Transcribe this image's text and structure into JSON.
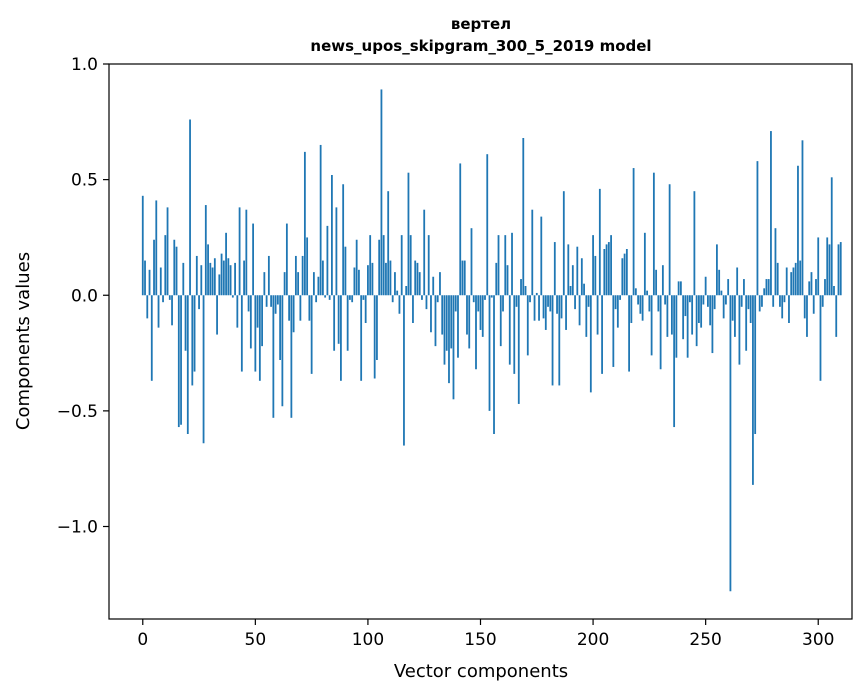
{
  "chart_data": {
    "type": "bar",
    "title_line1": "вертел",
    "title_line2": "news_upos_skipgram_300_5_2019 model",
    "xlabel": "Vector components",
    "ylabel": "Components values",
    "xlim": [
      -15,
      315
    ],
    "ylim": [
      -1.4,
      1.0
    ],
    "xticks": [
      0,
      50,
      100,
      150,
      200,
      250,
      300
    ],
    "xtick_labels": [
      "0",
      "50",
      "100",
      "150",
      "200",
      "250",
      "300"
    ],
    "yticks": [
      1.0,
      0.5,
      0.0,
      -0.5,
      -1.0
    ],
    "ytick_labels": [
      "1.0",
      "0.5",
      "0.0",
      "−0.5",
      "−1.0"
    ],
    "bar_color": "#1f77b4",
    "grid": false,
    "values": [
      0.43,
      0.15,
      -0.1,
      0.11,
      -0.37,
      0.24,
      0.41,
      -0.14,
      0.12,
      -0.03,
      0.26,
      0.38,
      -0.02,
      -0.13,
      0.24,
      0.21,
      -0.57,
      -0.56,
      0.14,
      -0.24,
      -0.6,
      0.76,
      -0.39,
      -0.33,
      0.17,
      -0.06,
      0.13,
      -0.64,
      0.39,
      0.22,
      0.14,
      0.12,
      0.16,
      -0.17,
      0.09,
      0.18,
      0.15,
      0.27,
      0.16,
      0.13,
      -0.01,
      0.14,
      -0.14,
      0.38,
      -0.33,
      0.15,
      0.37,
      -0.07,
      -0.23,
      0.31,
      -0.33,
      -0.14,
      -0.37,
      -0.22,
      0.1,
      -0.05,
      0.17,
      -0.05,
      -0.53,
      -0.08,
      -0.04,
      -0.28,
      -0.48,
      0.1,
      0.31,
      -0.11,
      -0.53,
      -0.16,
      0.17,
      0.1,
      -0.11,
      0.17,
      0.62,
      0.25,
      -0.11,
      -0.34,
      0.1,
      -0.03,
      0.08,
      0.65,
      0.15,
      -0.01,
      0.3,
      -0.02,
      0.52,
      -0.24,
      0.38,
      -0.21,
      -0.37,
      0.48,
      0.21,
      -0.24,
      -0.02,
      -0.03,
      0.12,
      0.24,
      0.11,
      -0.37,
      -0.02,
      -0.12,
      0.13,
      0.26,
      0.14,
      -0.36,
      -0.28,
      0.24,
      0.89,
      0.26,
      0.14,
      0.45,
      0.15,
      -0.03,
      0.1,
      0.02,
      -0.08,
      0.26,
      -0.65,
      0.04,
      0.53,
      0.26,
      -0.12,
      0.15,
      0.14,
      0.1,
      -0.02,
      0.37,
      -0.06,
      0.26,
      -0.16,
      0.08,
      -0.22,
      -0.03,
      0.1,
      -0.17,
      -0.3,
      -0.24,
      -0.38,
      -0.23,
      -0.45,
      -0.07,
      -0.27,
      0.57,
      0.15,
      0.15,
      -0.17,
      -0.23,
      0.29,
      -0.03,
      -0.32,
      -0.07,
      -0.15,
      -0.18,
      -0.02,
      0.61,
      -0.5,
      -0.01,
      -0.6,
      0.14,
      0.26,
      -0.22,
      -0.07,
      0.26,
      0.13,
      -0.3,
      0.27,
      -0.34,
      -0.05,
      -0.47,
      0.07,
      0.68,
      0.04,
      -0.26,
      -0.03,
      0.37,
      -0.11,
      0.01,
      -0.11,
      0.34,
      -0.1,
      -0.15,
      -0.05,
      -0.07,
      -0.39,
      0.23,
      -0.08,
      -0.39,
      -0.1,
      0.45,
      -0.15,
      0.22,
      0.04,
      0.13,
      -0.06,
      0.21,
      -0.13,
      0.16,
      0.05,
      -0.18,
      -0.05,
      -0.42,
      0.26,
      0.17,
      -0.17,
      0.46,
      -0.34,
      0.2,
      0.22,
      0.23,
      0.26,
      -0.31,
      -0.06,
      -0.14,
      -0.02,
      0.16,
      0.18,
      0.2,
      -0.33,
      -0.12,
      0.55,
      0.03,
      -0.04,
      -0.08,
      -0.11,
      0.27,
      0.02,
      -0.07,
      -0.26,
      0.53,
      0.11,
      -0.07,
      -0.32,
      0.13,
      -0.04,
      -0.18,
      0.48,
      -0.17,
      -0.57,
      -0.27,
      0.06,
      0.06,
      -0.19,
      -0.09,
      -0.27,
      -0.03,
      -0.17,
      0.45,
      -0.22,
      -0.12,
      -0.14,
      -0.04,
      0.08,
      -0.05,
      -0.13,
      -0.25,
      -0.06,
      0.22,
      0.11,
      0.02,
      -0.1,
      -0.04,
      0.07,
      -1.28,
      -0.11,
      -0.18,
      0.12,
      -0.3,
      -0.05,
      0.07,
      -0.24,
      -0.06,
      -0.12,
      -0.82,
      -0.6,
      0.58,
      -0.07,
      -0.05,
      0.03,
      0.07,
      0.07,
      0.71,
      -0.05,
      0.29,
      0.14,
      -0.05,
      -0.1,
      -0.03,
      0.12,
      -0.12,
      0.1,
      0.12,
      0.14,
      0.56,
      0.15,
      0.67,
      -0.1,
      -0.18,
      0.06,
      0.1,
      -0.08,
      0.07,
      0.25,
      -0.37,
      -0.05,
      0.07,
      0.25,
      0.22,
      0.51,
      0.04,
      -0.18,
      0.22,
      0.23
    ]
  }
}
